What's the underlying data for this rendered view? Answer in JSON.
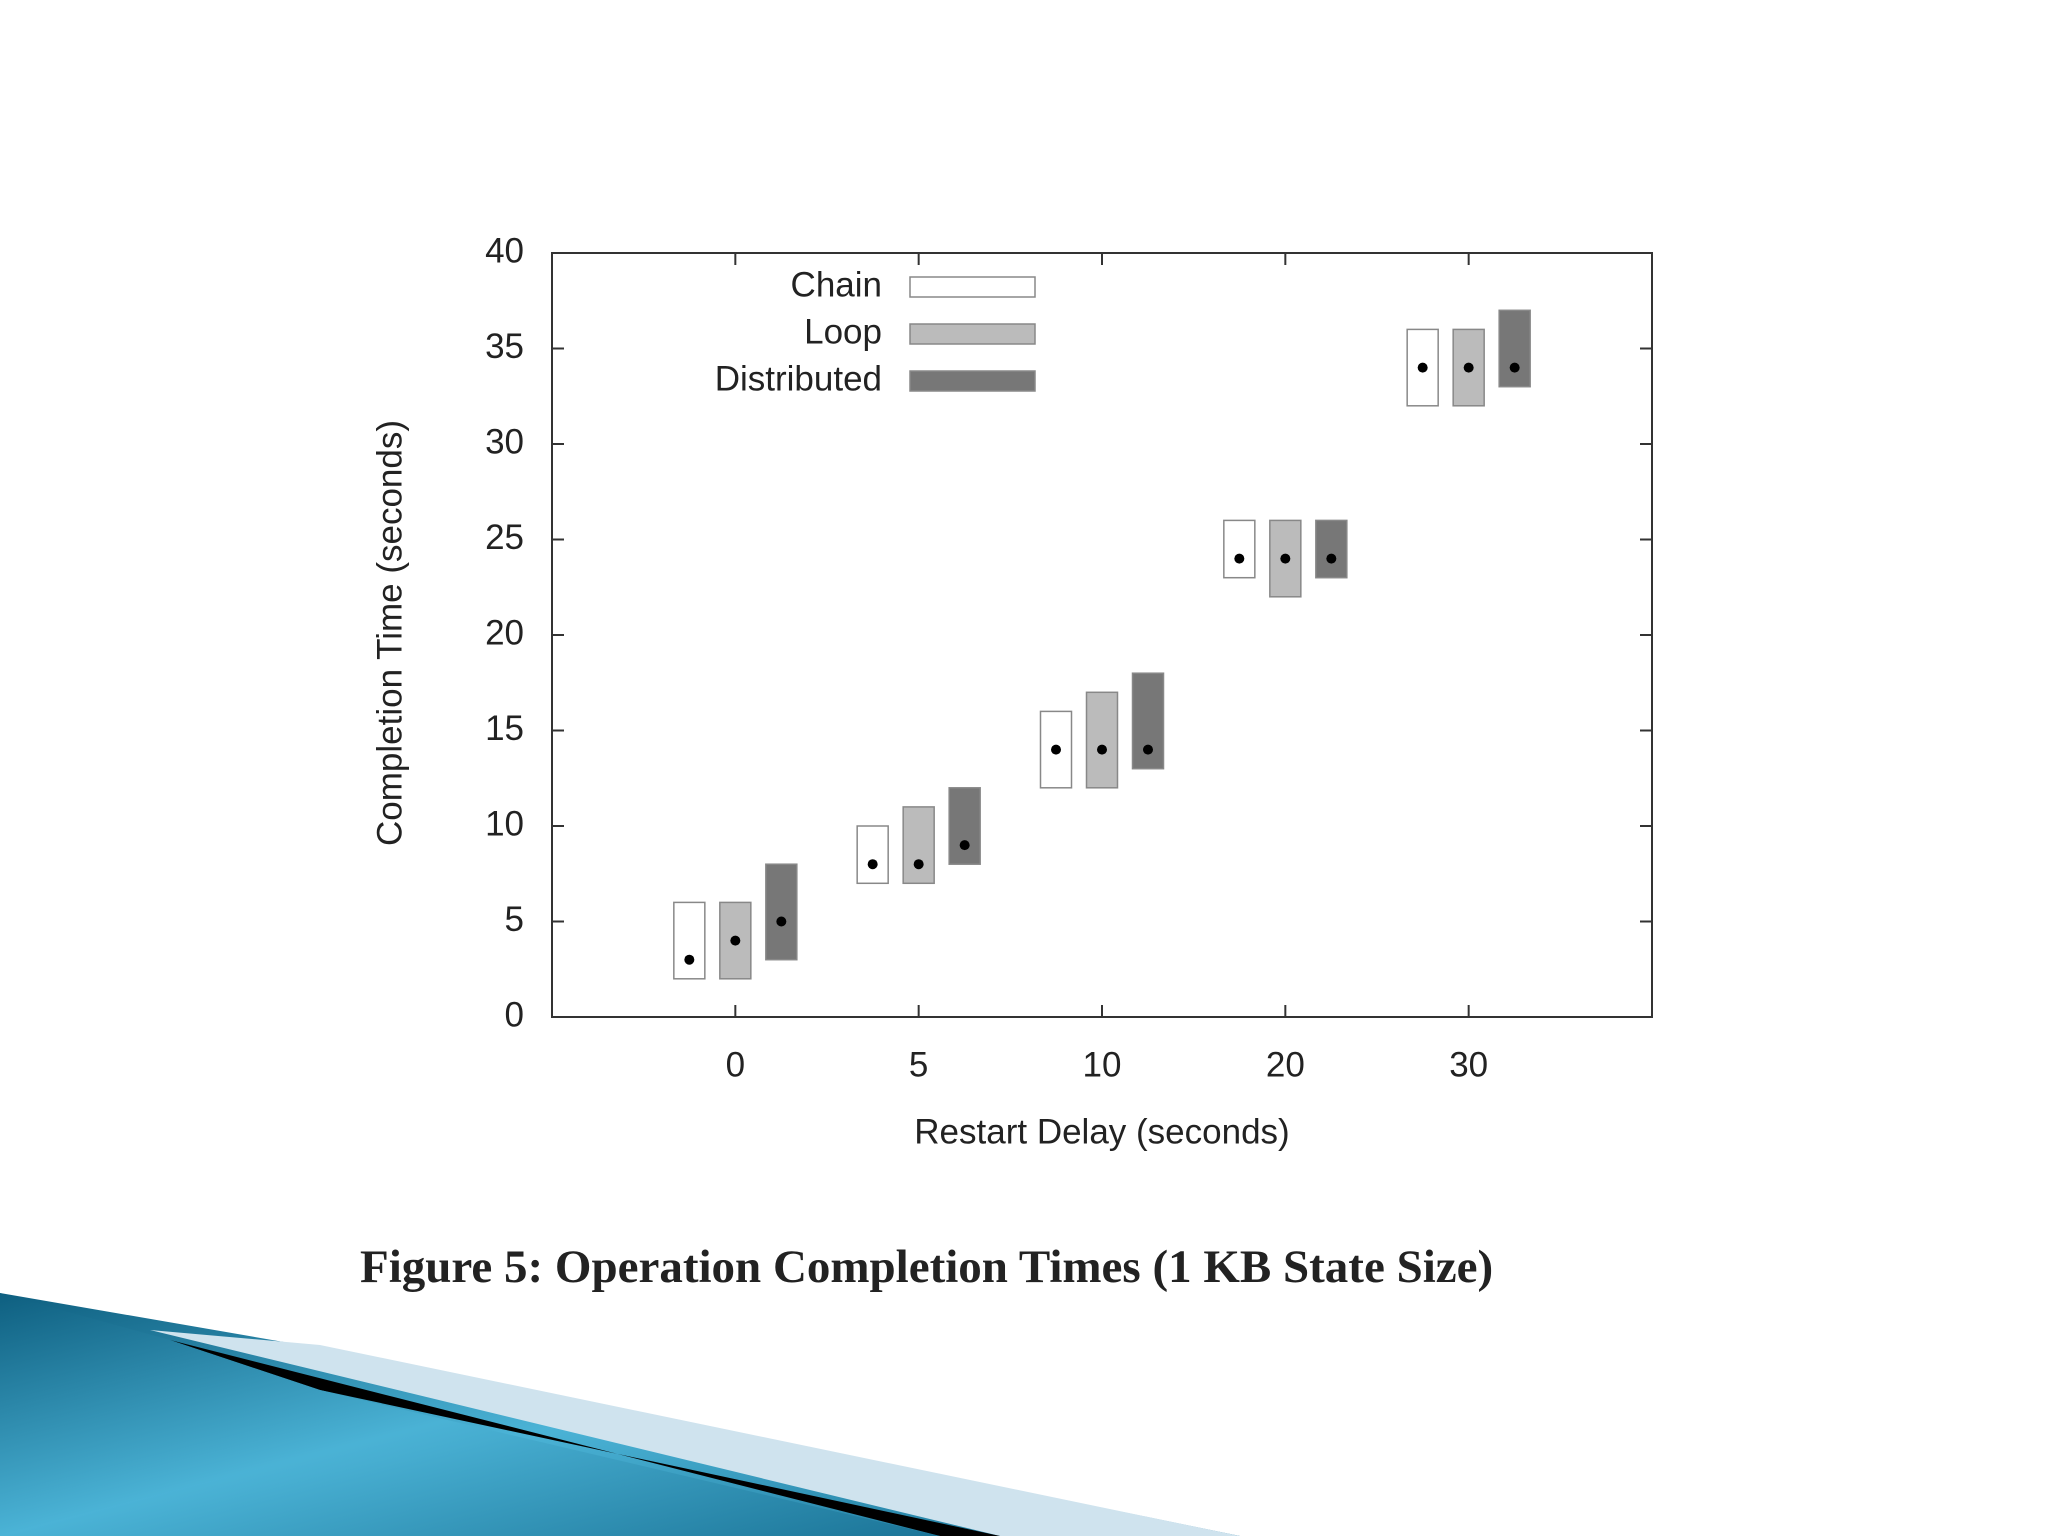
{
  "chart_data": {
    "type": "range",
    "x_label": "Restart Delay (seconds)",
    "y_label": "Completion Time (seconds)",
    "caption": "Figure 5: Operation Completion Times (1 KB State Size)",
    "categories": [
      "0",
      "5",
      "10",
      "20",
      "30"
    ],
    "series": [
      {
        "name": "Chain",
        "color": "#ffffff",
        "values": [
          3,
          8,
          14,
          24,
          34
        ],
        "low": [
          2,
          7,
          12,
          23,
          32
        ],
        "high": [
          6,
          10,
          16,
          26,
          36
        ]
      },
      {
        "name": "Loop",
        "color": "#bbbbbb",
        "values": [
          4,
          8,
          14,
          24,
          34
        ],
        "low": [
          2,
          7,
          12,
          22,
          32
        ],
        "high": [
          6,
          11,
          17,
          26,
          36
        ]
      },
      {
        "name": "Distributed",
        "color": "#777777",
        "values": [
          5,
          9,
          14,
          24,
          34
        ],
        "low": [
          3,
          8,
          13,
          23,
          33
        ],
        "high": [
          8,
          12,
          18,
          26,
          37
        ]
      }
    ],
    "ylim": [
      0,
      40
    ],
    "yticks": [
      0,
      5,
      10,
      15,
      20,
      25,
      30,
      35,
      40
    ],
    "grid": false,
    "legend": "top-left"
  }
}
